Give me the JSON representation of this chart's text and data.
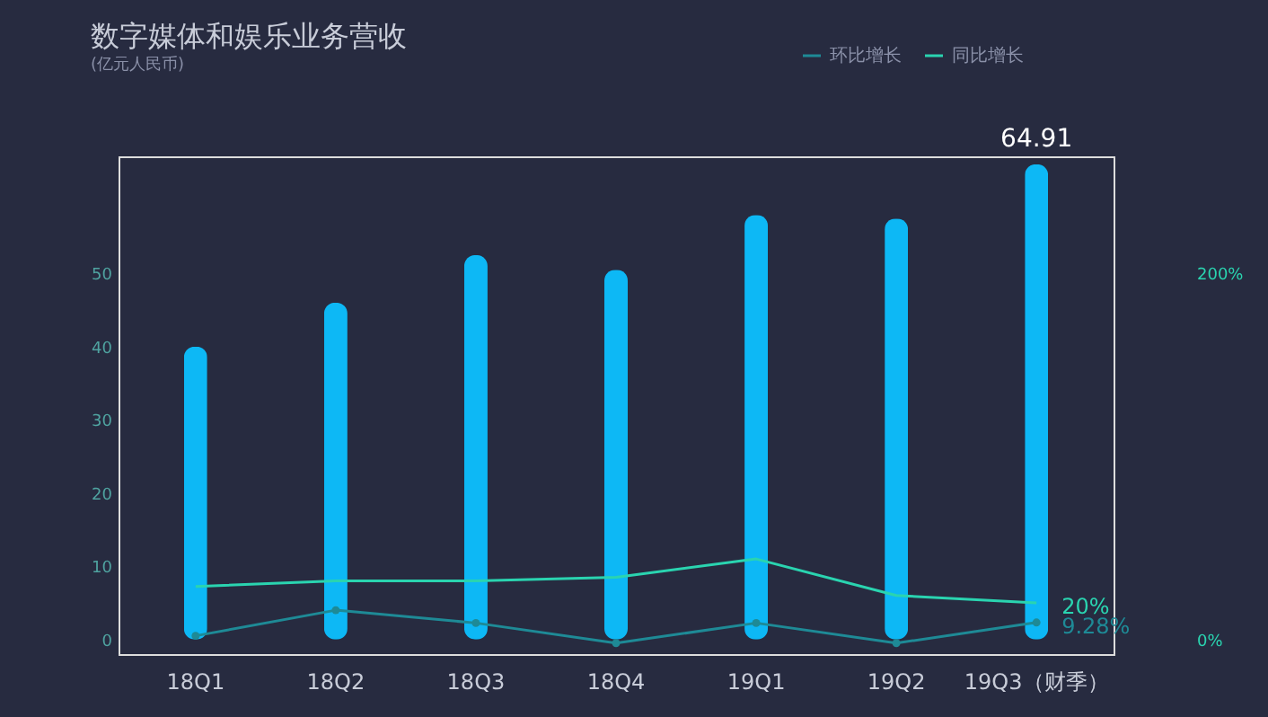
{
  "chart_data": {
    "type": "bar",
    "title": "数字媒体和娱乐业务营收",
    "subtitle": "(亿元人民币)",
    "categories": [
      "18Q1",
      "18Q2",
      "18Q3",
      "18Q4",
      "19Q1",
      "19Q2",
      "19Q3（财季）"
    ],
    "series": [
      {
        "color": "#0db8f5",
        "values": [
          40,
          46,
          52.5,
          50.5,
          58,
          57.5,
          64.91
        ],
        "value_labels": [
          null,
          null,
          null,
          null,
          null,
          null,
          "64.91"
        ]
      },
      {
        "type": "line",
        "axis": "y2",
        "name": "环比增长",
        "color": "#1e8a96",
        "marker": "circle",
        "values": [
          2,
          16,
          9,
          -2,
          9,
          -2,
          9.28
        ],
        "value_labels": [
          null,
          null,
          null,
          null,
          null,
          null,
          "9.28%"
        ]
      },
      {
        "type": "line",
        "axis": "y2",
        "name": "同比增长",
        "color": "#2ad4b0",
        "marker": "none",
        "values": [
          29,
          32,
          32,
          34,
          44,
          24,
          20
        ],
        "value_labels": [
          null,
          null,
          null,
          null,
          null,
          null,
          "20%"
        ]
      }
    ],
    "ylim": [
      -2,
      66
    ],
    "yticks": [
      0,
      10,
      20,
      30,
      40,
      50
    ],
    "y2lim": [
      -8,
      264
    ],
    "y2ticks": [
      {
        "value": 0,
        "label": "0%"
      },
      {
        "value": 200,
        "label": "200%"
      }
    ],
    "grid": false,
    "legend": "top right"
  }
}
